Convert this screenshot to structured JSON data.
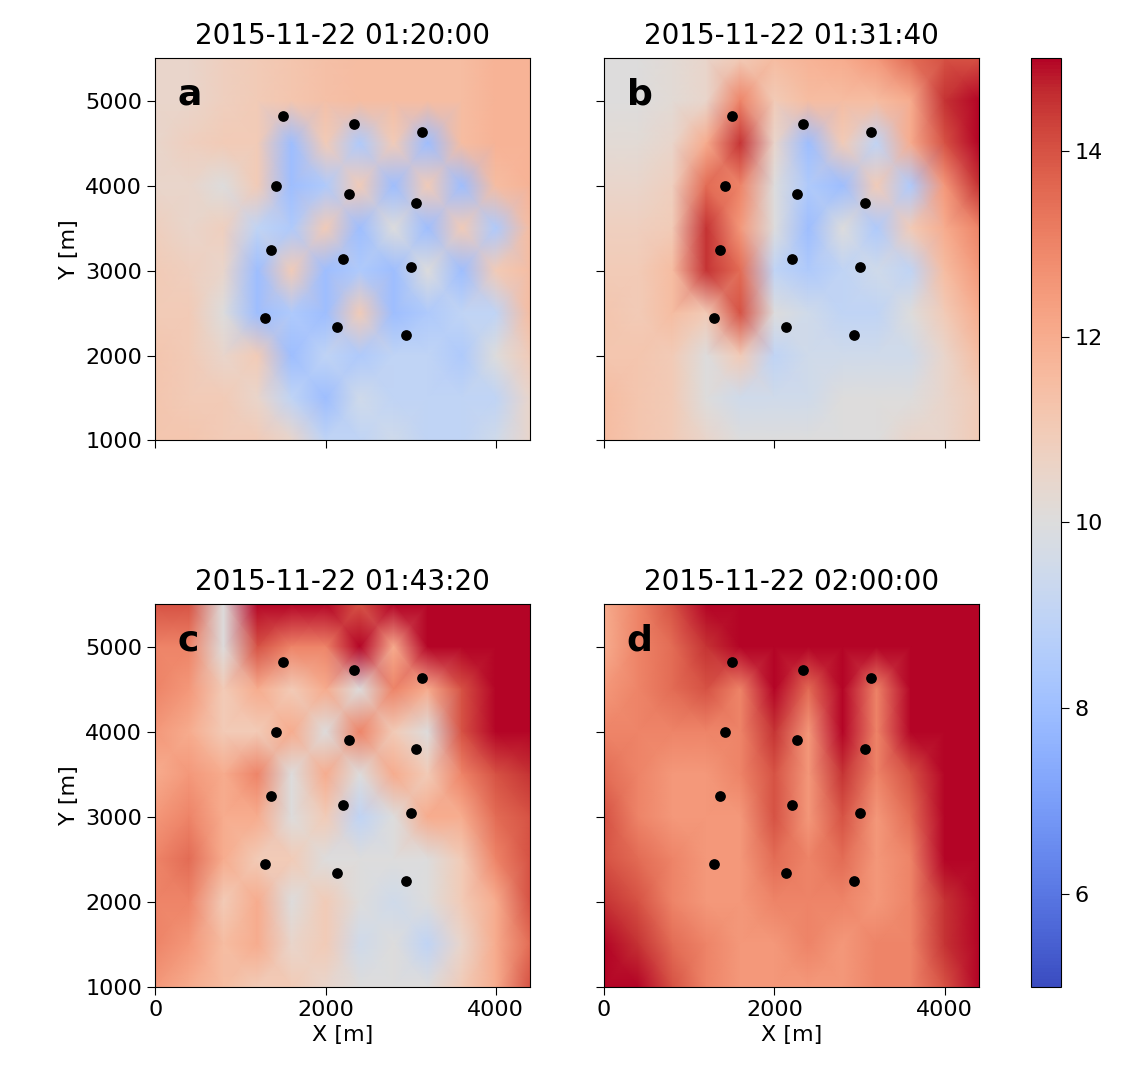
{
  "chart_data": [
    {
      "type": "heatmap",
      "title": "2015-11-22 01:20:00",
      "label": "a",
      "ylabel": "Y [m]",
      "tick_labels": "y",
      "xlim": [
        0,
        4400
      ],
      "ylim": [
        1000,
        5500
      ],
      "xticks": [
        0,
        2000,
        4000
      ],
      "yticks": [
        1000,
        2000,
        3000,
        4000,
        5000
      ],
      "x": [
        0,
        400,
        800,
        1200,
        1600,
        2000,
        2400,
        2800,
        3200,
        3600,
        4000,
        4400
      ],
      "y": [
        5500,
        5000,
        4500,
        4000,
        3500,
        3000,
        2500,
        2000,
        1500,
        1000
      ],
      "values": [
        [
          10.5,
          10.5,
          10.8,
          11,
          11.2,
          11.4,
          11.5,
          11.5,
          11.5,
          11.5,
          11.8,
          11.8
        ],
        [
          10.5,
          10.5,
          10.8,
          11,
          11.2,
          11.4,
          11.5,
          11.5,
          11.5,
          11.5,
          11.8,
          11.8
        ],
        [
          10.5,
          10.8,
          11,
          11,
          8,
          11,
          8.5,
          11,
          8,
          11.5,
          11.8,
          11.8
        ],
        [
          10.5,
          10.5,
          10,
          11,
          8,
          8.5,
          11,
          8,
          11,
          8,
          11.5,
          11.8
        ],
        [
          10.8,
          10.5,
          10.8,
          9,
          8.5,
          11,
          8,
          10,
          8,
          11,
          8.5,
          11.5
        ],
        [
          11,
          10.8,
          10.5,
          8,
          11,
          8,
          8.5,
          8,
          10,
          8,
          11,
          11.5
        ],
        [
          11,
          11,
          10,
          8,
          8.5,
          8,
          11,
          8,
          8.5,
          9,
          9,
          11.5
        ],
        [
          11.2,
          11,
          10.5,
          11,
          8,
          9,
          8.5,
          9,
          9,
          8.5,
          10,
          11
        ],
        [
          11.2,
          11,
          11,
          10.5,
          9,
          8,
          9.5,
          9,
          9,
          9,
          9,
          10.5
        ],
        [
          11.2,
          11.2,
          11,
          11,
          10.5,
          9,
          9,
          9.5,
          9,
          9,
          9.5,
          10.5
        ]
      ]
    },
    {
      "type": "heatmap",
      "title": "2015-11-22 01:31:40",
      "label": "b",
      "tick_labels": false,
      "xlim": [
        0,
        4400
      ],
      "ylim": [
        1000,
        5500
      ],
      "xticks": [
        0,
        2000,
        4000
      ],
      "yticks": [
        1000,
        2000,
        3000,
        4000,
        5000
      ],
      "x": [
        0,
        400,
        800,
        1200,
        1600,
        2000,
        2400,
        2800,
        3200,
        3600,
        4000,
        4400
      ],
      "y": [
        5500,
        5000,
        4500,
        4000,
        3500,
        3000,
        2500,
        2000,
        1500,
        1000
      ],
      "values": [
        [
          10,
          10,
          10.2,
          10.5,
          11,
          11.5,
          11.8,
          12,
          12.5,
          13.5,
          14,
          14
        ],
        [
          10,
          10,
          10.2,
          10.5,
          13,
          11,
          11.5,
          11.5,
          11.5,
          12,
          14.5,
          15
        ],
        [
          10.2,
          10.2,
          10.5,
          12,
          14.5,
          10.5,
          8,
          11,
          9,
          12,
          14,
          15
        ],
        [
          10.5,
          10.5,
          10.8,
          13.5,
          13,
          10,
          8.5,
          8,
          11,
          8.5,
          12.5,
          14.5
        ],
        [
          10.8,
          10.8,
          11,
          14.5,
          12.5,
          10,
          8,
          10,
          8.5,
          11,
          12,
          13
        ],
        [
          11,
          11,
          11.5,
          14.5,
          13.5,
          9,
          8.5,
          9,
          9.5,
          9,
          11.5,
          12.5
        ],
        [
          11.2,
          11,
          11.5,
          11,
          14,
          10,
          9.5,
          9,
          9,
          10,
          11,
          12
        ],
        [
          11.2,
          11.2,
          11,
          10,
          11,
          9,
          9.5,
          9.5,
          9.5,
          9.5,
          10.5,
          11.5
        ],
        [
          11.5,
          11.2,
          11,
          10,
          9.5,
          9.5,
          9.5,
          10,
          10,
          10,
          10.5,
          11
        ],
        [
          11.5,
          11.2,
          11,
          10.5,
          10,
          10,
          10,
          10,
          10,
          10.5,
          10.5,
          11
        ]
      ]
    },
    {
      "type": "heatmap",
      "title": "2015-11-22 01:43:20",
      "label": "c",
      "xlabel": "X [m]",
      "ylabel": "Y [m]",
      "tick_labels": true,
      "xlim": [
        0,
        4400
      ],
      "ylim": [
        1000,
        5500
      ],
      "xticks": [
        0,
        2000,
        4000
      ],
      "yticks": [
        1000,
        2000,
        3000,
        4000,
        5000
      ],
      "x": [
        0,
        400,
        800,
        1200,
        1600,
        2000,
        2400,
        2800,
        3200,
        3600,
        4000,
        4400
      ],
      "y": [
        5500,
        5000,
        4500,
        4000,
        3500,
        3000,
        2500,
        2000,
        1500,
        1000
      ],
      "values": [
        [
          14,
          14,
          10,
          15,
          15,
          15,
          14,
          15,
          15,
          15,
          15,
          15
        ],
        [
          13,
          13,
          10,
          14,
          13,
          13,
          15,
          12,
          15,
          15,
          15,
          15
        ],
        [
          13,
          12.5,
          11,
          12,
          11,
          12,
          10,
          13,
          12,
          14,
          15,
          15
        ],
        [
          12.5,
          12,
          11,
          11,
          12,
          10,
          13,
          11,
          10,
          14,
          15,
          15
        ],
        [
          12,
          12.5,
          12,
          13,
          10,
          12,
          10,
          12,
          11,
          13,
          14,
          14.5
        ],
        [
          12.5,
          13,
          12,
          12,
          10,
          11,
          9,
          10,
          12,
          12,
          13.5,
          14
        ],
        [
          13,
          13.5,
          12,
          11,
          11,
          10,
          10,
          10,
          10,
          11,
          13,
          14
        ],
        [
          13,
          13,
          11,
          12,
          10,
          11,
          10,
          9.5,
          10,
          11,
          12,
          14
        ],
        [
          13,
          12.5,
          11.5,
          12,
          10.5,
          11,
          9.5,
          10,
          9,
          10.5,
          12,
          13.5
        ],
        [
          12.5,
          12,
          11.5,
          11,
          11,
          10.5,
          10,
          10,
          10,
          11,
          12,
          14
        ]
      ]
    },
    {
      "type": "heatmap",
      "title": "2015-11-22 02:00:00",
      "label": "d",
      "xlabel": "X [m]",
      "tick_labels": "x",
      "xlim": [
        0,
        4400
      ],
      "ylim": [
        1000,
        5500
      ],
      "xticks": [
        0,
        2000,
        4000
      ],
      "yticks": [
        1000,
        2000,
        3000,
        4000,
        5000
      ],
      "x": [
        0,
        400,
        800,
        1200,
        1600,
        2000,
        2400,
        2800,
        3200,
        3600,
        4000,
        4400
      ],
      "y": [
        5500,
        5000,
        4500,
        4000,
        3500,
        3000,
        2500,
        2000,
        1500,
        1000
      ],
      "values": [
        [
          12,
          13,
          14,
          15,
          15,
          15,
          15,
          15,
          15,
          15,
          15,
          15
        ],
        [
          12,
          13,
          13.5,
          14.5,
          15,
          15,
          15,
          15,
          15,
          15,
          15,
          15
        ],
        [
          12.5,
          13,
          13.5,
          14,
          13,
          15,
          13.5,
          15,
          13,
          15,
          15,
          15
        ],
        [
          13,
          13,
          13,
          13,
          13,
          14.5,
          12.5,
          15,
          13,
          15,
          15,
          15
        ],
        [
          13.5,
          13,
          12.5,
          12.5,
          13,
          14,
          12.5,
          14.5,
          13,
          14,
          15,
          15
        ],
        [
          14,
          13,
          12.5,
          12.5,
          12.5,
          14,
          12.5,
          14,
          12.5,
          13.5,
          15,
          15
        ],
        [
          14,
          13.5,
          13,
          12.5,
          12.5,
          13.5,
          13,
          13.5,
          12.5,
          13,
          15,
          15
        ],
        [
          14.5,
          14,
          13,
          12.5,
          12.5,
          13,
          13,
          13,
          12.5,
          13,
          14.5,
          15
        ],
        [
          15,
          14.5,
          13.5,
          13,
          12.5,
          12.5,
          13,
          12.5,
          13,
          13,
          14.5,
          15
        ],
        [
          15,
          15,
          14,
          13,
          12.5,
          12.5,
          12.5,
          12.5,
          13,
          13,
          14,
          15
        ]
      ]
    }
  ],
  "points": {
    "x": [
      1500,
      1420,
      1360,
      1290,
      2340,
      2270,
      2210,
      2140,
      3130,
      3060,
      3000,
      2940
    ],
    "y": [
      4820,
      4000,
      3240,
      2440,
      4720,
      3900,
      3140,
      2340,
      4630,
      3800,
      3040,
      2240
    ],
    "color": "black"
  },
  "colorbar": {
    "range": [
      5,
      15
    ],
    "ticks": [
      6,
      8,
      10,
      12,
      14
    ]
  }
}
